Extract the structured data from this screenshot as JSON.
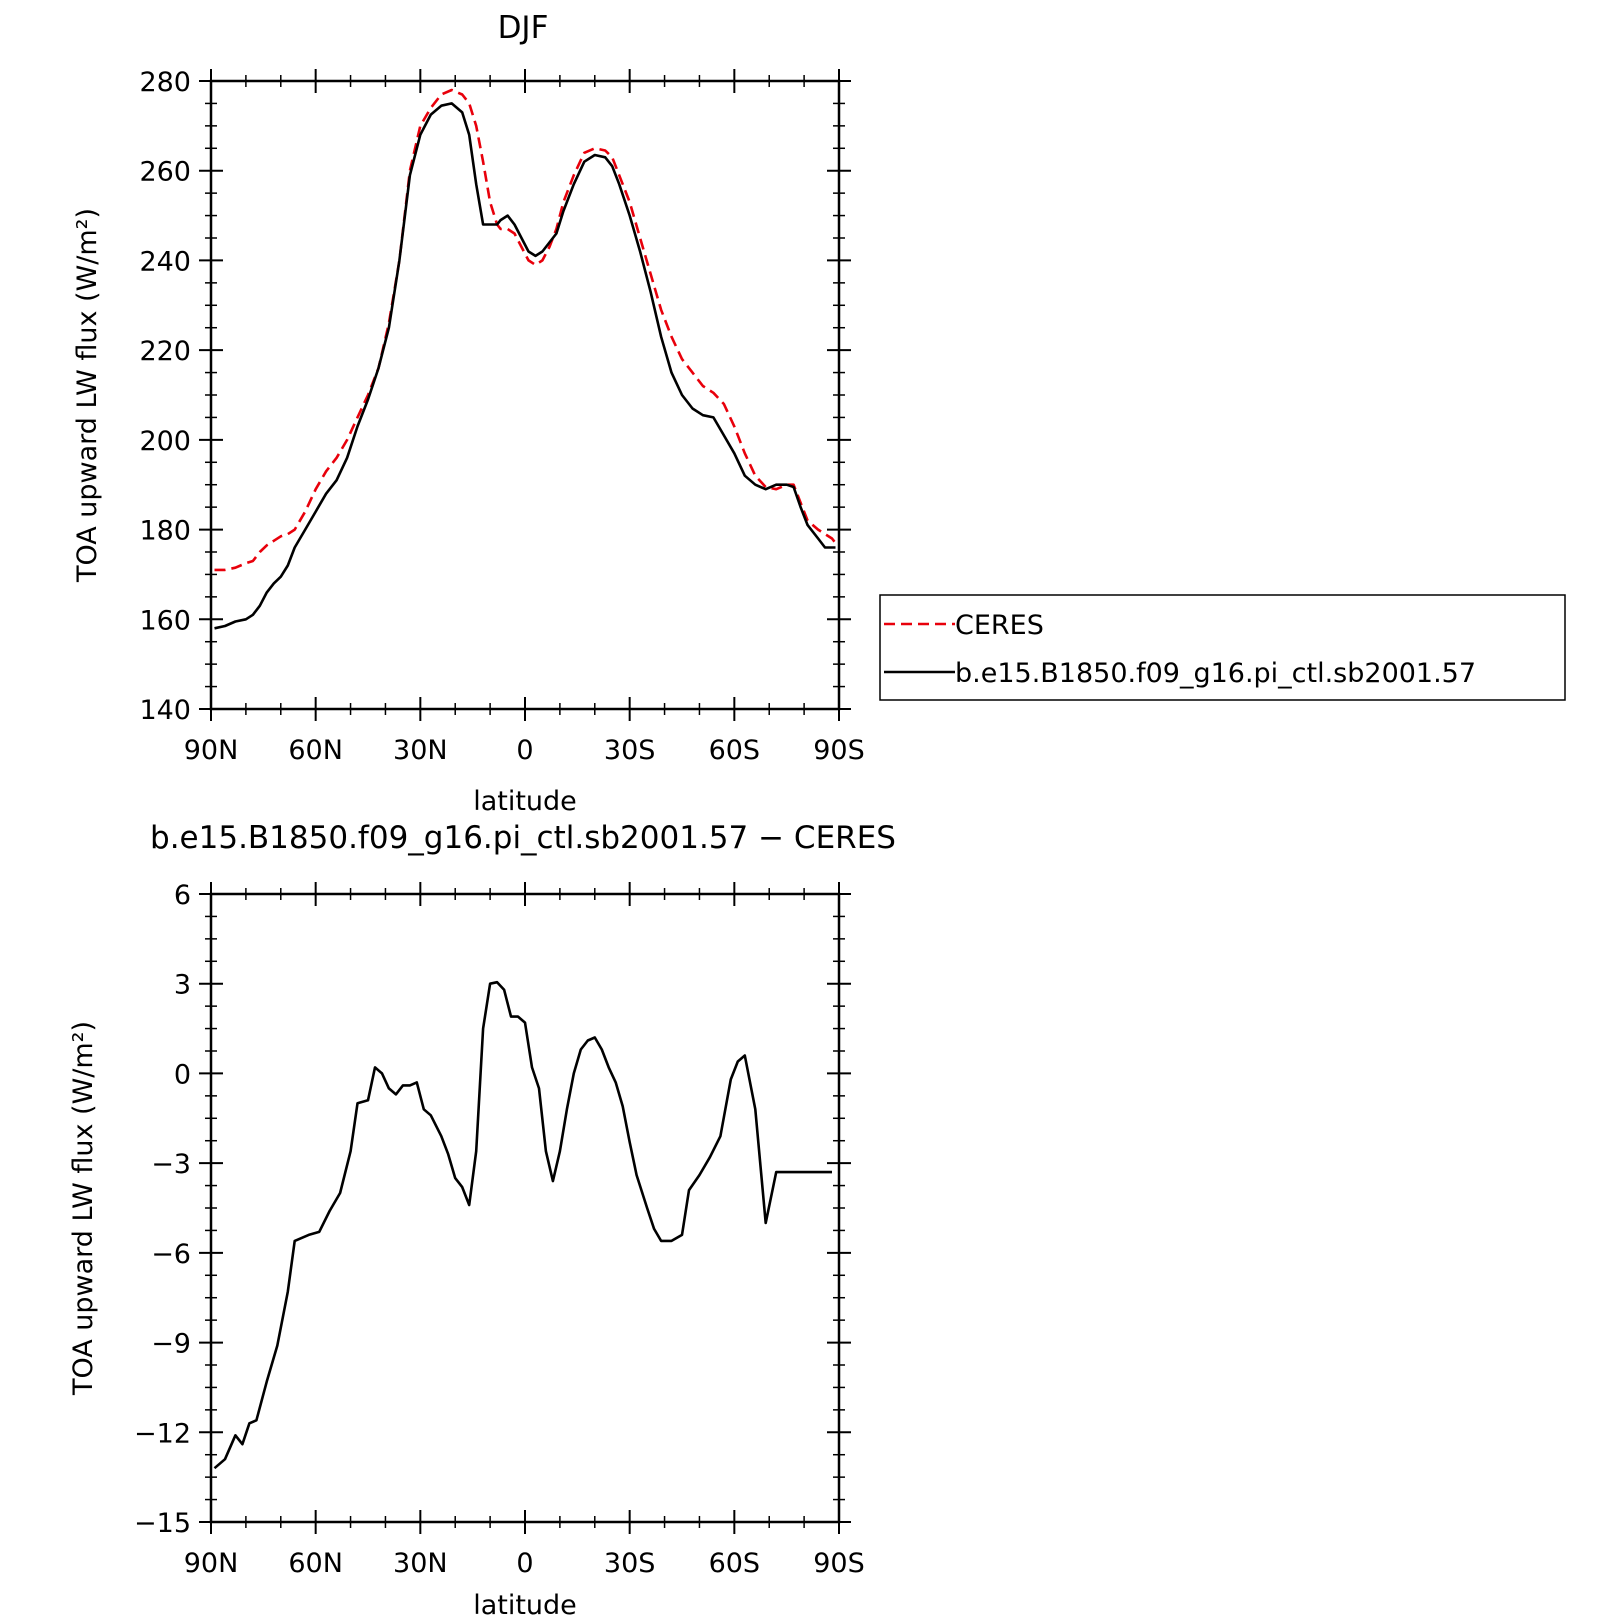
{
  "chart_data": [
    {
      "type": "line",
      "title": "DJF",
      "xlabel": "latitude",
      "ylabel": "TOA upward LW flux (W/m²)",
      "ylim": [
        140,
        280
      ],
      "yticks": [
        140,
        160,
        180,
        200,
        220,
        240,
        260,
        280
      ],
      "ytick_labels": [
        "140",
        "160",
        "180",
        "200",
        "220",
        "240",
        "260",
        "280"
      ],
      "xlim": [
        90,
        -90
      ],
      "xticks": [
        90,
        60,
        30,
        0,
        -30,
        -60,
        -90
      ],
      "xtick_labels": [
        "90N",
        "60N",
        "30N",
        "0",
        "30S",
        "60S",
        "90S"
      ],
      "legend_position": "right",
      "series": [
        {
          "name": "CERES",
          "color": "#e8000b",
          "dash": "dashed",
          "x": [
            89,
            86,
            83,
            80,
            78,
            76,
            74,
            72,
            70,
            68,
            66,
            63,
            60,
            57,
            54,
            51,
            48,
            45,
            42,
            39,
            36,
            33,
            30,
            27,
            24,
            21,
            18,
            16,
            14,
            12,
            10,
            8,
            7,
            5,
            3,
            1,
            -1,
            -3,
            -5,
            -7,
            -9,
            -11,
            -14,
            -17,
            -20,
            -23,
            -25,
            -27,
            -30,
            -33,
            -36,
            -39,
            -42,
            -45,
            -48,
            -51,
            -54,
            -57,
            -60,
            -63,
            -66,
            -69,
            -72,
            -75,
            -77,
            -79,
            -81,
            -84,
            -86,
            -88,
            -89
          ],
          "y": [
            171,
            171,
            171.5,
            172.5,
            173,
            175,
            176.5,
            177.5,
            178.5,
            179,
            180,
            184,
            189,
            193,
            196,
            200,
            205,
            210,
            216,
            226,
            240,
            260,
            270,
            274,
            277,
            278,
            277,
            275,
            270,
            262,
            253,
            248,
            247,
            247,
            246,
            243,
            240,
            239,
            240,
            243,
            247,
            253,
            259,
            264,
            265,
            264.5,
            263,
            259,
            253,
            245,
            237,
            229,
            223,
            218,
            215,
            212,
            210.5,
            208,
            203,
            197,
            192,
            189.5,
            189,
            190,
            190,
            186,
            182,
            180,
            179,
            178,
            177
          ]
        },
        {
          "name": "b.e15.B1850.f09_g16.pi_ctl.sb2001.57",
          "color": "#000000",
          "dash": "solid",
          "x": [
            89,
            86,
            83,
            80,
            78,
            76,
            74,
            72,
            70,
            68,
            66,
            63,
            60,
            57,
            54,
            51,
            48,
            45,
            42,
            39,
            36,
            33,
            30,
            27,
            24,
            21,
            18,
            16,
            14,
            12,
            10,
            8,
            7,
            5,
            3,
            1,
            -1,
            -3,
            -5,
            -7,
            -9,
            -11,
            -14,
            -17,
            -20,
            -23,
            -25,
            -27,
            -30,
            -33,
            -36,
            -39,
            -42,
            -45,
            -48,
            -51,
            -54,
            -57,
            -60,
            -63,
            -66,
            -69,
            -72,
            -75,
            -77,
            -79,
            -81,
            -84,
            -86,
            -88,
            -89
          ],
          "y": [
            158,
            158.5,
            159.5,
            160,
            161,
            163,
            166,
            168,
            169.5,
            172,
            176,
            180,
            184,
            188,
            191,
            196,
            203,
            209,
            216,
            225,
            240,
            259,
            268,
            272.5,
            274.5,
            275,
            273,
            268,
            257,
            248,
            248,
            248,
            249,
            250,
            248,
            245,
            242,
            241,
            242,
            244,
            246,
            251,
            257,
            262,
            263.5,
            263,
            261,
            257,
            250,
            242,
            233,
            223,
            215,
            210,
            207,
            205.5,
            205,
            201,
            197,
            192,
            190,
            189,
            190,
            190,
            189.5,
            185,
            181,
            178,
            176,
            176,
            176
          ]
        }
      ]
    },
    {
      "type": "line",
      "title": "b.e15.B1850.f09_g16.pi_ctl.sb2001.57 − CERES",
      "xlabel": "latitude",
      "ylabel": "TOA upward LW flux (W/m²)",
      "ylim": [
        -15,
        6
      ],
      "yticks": [
        -15,
        -12,
        -9,
        -6,
        -3,
        0,
        3,
        6
      ],
      "ytick_labels": [
        "−15",
        "−12",
        "−9",
        "−6",
        "−3",
        "0",
        "3",
        "6"
      ],
      "xlim": [
        90,
        -90
      ],
      "xticks": [
        90,
        60,
        30,
        0,
        -30,
        -60,
        -90
      ],
      "xtick_labels": [
        "90N",
        "60N",
        "30N",
        "0",
        "30S",
        "60S",
        "90S"
      ],
      "series": [
        {
          "color": "#000000",
          "dash": "solid",
          "x": [
            89,
            86,
            83,
            81,
            79,
            77,
            74,
            71,
            68,
            66,
            64,
            62,
            59,
            56,
            53,
            50,
            48,
            45,
            43,
            41,
            39,
            37,
            35,
            33,
            31,
            29,
            27,
            24,
            22,
            20,
            18,
            16,
            14,
            12,
            10,
            8,
            6,
            4,
            2,
            0,
            -2,
            -4,
            -6,
            -8,
            -10,
            -12,
            -14,
            -16,
            -18,
            -20,
            -22,
            -24,
            -26,
            -28,
            -30,
            -32,
            -35,
            -37,
            -39,
            -42,
            -45,
            -47,
            -50,
            -53,
            -56,
            -59,
            -61,
            -63,
            -66,
            -69,
            -72,
            -74,
            -76,
            -78,
            -80,
            -82,
            -84,
            -86,
            -88
          ],
          "y": [
            -13.2,
            -12.9,
            -12.1,
            -12.4,
            -11.7,
            -11.6,
            -10.3,
            -9.1,
            -7.3,
            -5.6,
            -5.5,
            -5.4,
            -5.3,
            -4.6,
            -4.0,
            -2.6,
            -1.0,
            -0.9,
            0.2,
            0.0,
            -0.5,
            -0.7,
            -0.4,
            -0.4,
            -0.3,
            -1.2,
            -1.4,
            -2.1,
            -2.7,
            -3.5,
            -3.8,
            -4.4,
            -2.6,
            1.5,
            3.0,
            3.05,
            2.8,
            1.9,
            1.9,
            1.7,
            0.2,
            -0.5,
            -2.6,
            -3.6,
            -2.6,
            -1.2,
            0.0,
            0.8,
            1.1,
            1.2,
            0.8,
            0.2,
            -0.3,
            -1.1,
            -2.3,
            -3.4,
            -4.5,
            -5.2,
            -5.6,
            -5.6,
            -5.4,
            -3.9,
            -3.4,
            -2.8,
            -2.1,
            -0.2,
            0.4,
            0.6,
            -1.2,
            -5.0,
            -3.3,
            -3.3,
            -3.3,
            -3.3,
            -3.3,
            -3.3,
            -3.3,
            -3.3,
            -3.3
          ]
        }
      ]
    }
  ]
}
